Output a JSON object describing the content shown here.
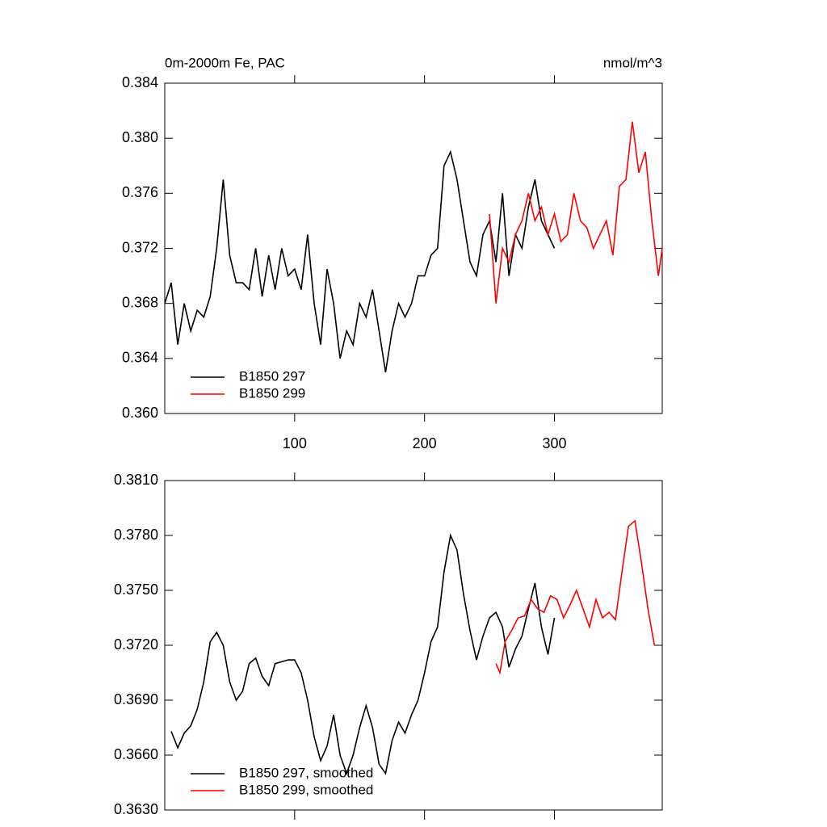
{
  "chart_data": [
    {
      "type": "line",
      "title": "0m-2000m Fe, PAC",
      "units": "nmol/m^3",
      "xlim": [
        0,
        383
      ],
      "xticks": [
        100,
        200,
        300
      ],
      "xtick_labels": true,
      "ylim": [
        0.36,
        0.384
      ],
      "yticks": [
        {
          "value": 0.36,
          "label": "0.360"
        },
        0.364,
        0.368,
        0.372,
        0.376,
        {
          "value": 0.38,
          "label": "0.380"
        },
        0.384
      ],
      "legend": "lower left",
      "series": [
        {
          "name": "B1850 297",
          "color": "#000000",
          "x": [
            0,
            5,
            10,
            15,
            20,
            25,
            30,
            35,
            40,
            45,
            50,
            55,
            60,
            65,
            70,
            75,
            80,
            85,
            90,
            95,
            100,
            105,
            110,
            115,
            120,
            125,
            130,
            135,
            140,
            145,
            150,
            155,
            160,
            165,
            170,
            175,
            180,
            185,
            190,
            195,
            200,
            205,
            210,
            215,
            220,
            225,
            230,
            235,
            240,
            245,
            250,
            255,
            260,
            265,
            270,
            275,
            280,
            285,
            290,
            295,
            300
          ],
          "values": [
            0.368,
            0.3695,
            0.365,
            0.368,
            0.366,
            0.3675,
            0.367,
            0.3685,
            0.372,
            0.377,
            0.3715,
            0.3695,
            0.3695,
            0.369,
            0.372,
            0.3685,
            0.3715,
            0.369,
            0.372,
            0.37,
            0.3705,
            0.369,
            0.373,
            0.368,
            0.365,
            0.3705,
            0.368,
            0.364,
            0.366,
            0.365,
            0.368,
            0.367,
            0.369,
            0.366,
            0.363,
            0.366,
            0.368,
            0.367,
            0.368,
            0.37,
            0.37,
            0.3715,
            0.372,
            0.378,
            0.379,
            0.377,
            0.374,
            0.371,
            0.37,
            0.373,
            0.374,
            0.371,
            0.376,
            0.37,
            0.373,
            0.372,
            0.375,
            0.377,
            0.374,
            0.373,
            0.372
          ]
        },
        {
          "name": "B1850 299",
          "color": "#ff0000",
          "x": [
            250,
            255,
            260,
            265,
            270,
            275,
            280,
            285,
            290,
            295,
            300,
            305,
            310,
            315,
            320,
            325,
            330,
            335,
            340,
            345,
            350,
            355,
            360,
            365,
            370,
            375,
            380,
            383
          ],
          "values": [
            0.3745,
            0.368,
            0.372,
            0.371,
            0.373,
            0.374,
            0.376,
            0.374,
            0.375,
            0.373,
            0.3745,
            0.3725,
            0.373,
            0.376,
            0.374,
            0.3735,
            0.372,
            0.373,
            0.374,
            0.3715,
            0.3765,
            0.377,
            0.3812,
            0.3775,
            0.379,
            0.374,
            0.37,
            0.372
          ]
        }
      ]
    },
    {
      "type": "line",
      "xlim": [
        0,
        383
      ],
      "xticks": [
        100,
        200,
        300
      ],
      "xtick_labels": false,
      "ylim": [
        0.363,
        0.381
      ],
      "yticks": [
        {
          "value": 0.363,
          "label": "0.3630"
        },
        {
          "value": 0.366,
          "label": "0.3660"
        },
        {
          "value": 0.369,
          "label": "0.3690"
        },
        {
          "value": 0.372,
          "label": "0.3720"
        },
        {
          "value": 0.375,
          "label": "0.3750"
        },
        {
          "value": 0.378,
          "label": "0.3780"
        },
        {
          "value": 0.381,
          "label": "0.3810"
        }
      ],
      "legend": "lower left",
      "series": [
        {
          "name": "B1850 297, smoothed",
          "color": "#000000",
          "x": [
            5,
            10,
            15,
            20,
            25,
            30,
            35,
            40,
            45,
            50,
            55,
            60,
            65,
            70,
            75,
            80,
            85,
            90,
            95,
            100,
            105,
            110,
            115,
            120,
            125,
            130,
            135,
            140,
            145,
            150,
            155,
            160,
            165,
            170,
            175,
            180,
            185,
            190,
            195,
            200,
            205,
            210,
            215,
            220,
            225,
            230,
            235,
            240,
            245,
            250,
            255,
            260,
            265,
            270,
            275,
            280,
            285,
            290,
            295,
            300
          ],
          "values": [
            0.3673,
            0.3664,
            0.3672,
            0.3676,
            0.3685,
            0.37,
            0.3722,
            0.3727,
            0.372,
            0.37,
            0.369,
            0.3695,
            0.371,
            0.3713,
            0.3703,
            0.3698,
            0.371,
            0.3711,
            0.3712,
            0.3712,
            0.3705,
            0.369,
            0.367,
            0.3657,
            0.3665,
            0.3682,
            0.366,
            0.365,
            0.366,
            0.3675,
            0.3687,
            0.3675,
            0.3655,
            0.365,
            0.3668,
            0.3678,
            0.3672,
            0.3682,
            0.369,
            0.3705,
            0.3722,
            0.373,
            0.376,
            0.378,
            0.3772,
            0.3748,
            0.3728,
            0.3712,
            0.3725,
            0.3735,
            0.3738,
            0.373,
            0.3708,
            0.3718,
            0.3725,
            0.374,
            0.3754,
            0.373,
            0.3715,
            0.3735
          ]
        },
        {
          "name": "B1850 299, smoothed",
          "color": "#ff0000",
          "x": [
            255,
            258,
            262,
            267,
            272,
            277,
            282,
            287,
            292,
            297,
            302,
            307,
            312,
            317,
            322,
            327,
            332,
            337,
            342,
            347,
            352,
            357,
            362,
            367,
            372,
            377
          ],
          "values": [
            0.371,
            0.3705,
            0.3722,
            0.3728,
            0.3735,
            0.3736,
            0.3745,
            0.374,
            0.3738,
            0.3747,
            0.3745,
            0.3735,
            0.3742,
            0.375,
            0.374,
            0.373,
            0.3745,
            0.3735,
            0.3738,
            0.3734,
            0.376,
            0.3785,
            0.3788,
            0.3765,
            0.374,
            0.372
          ]
        }
      ]
    }
  ]
}
